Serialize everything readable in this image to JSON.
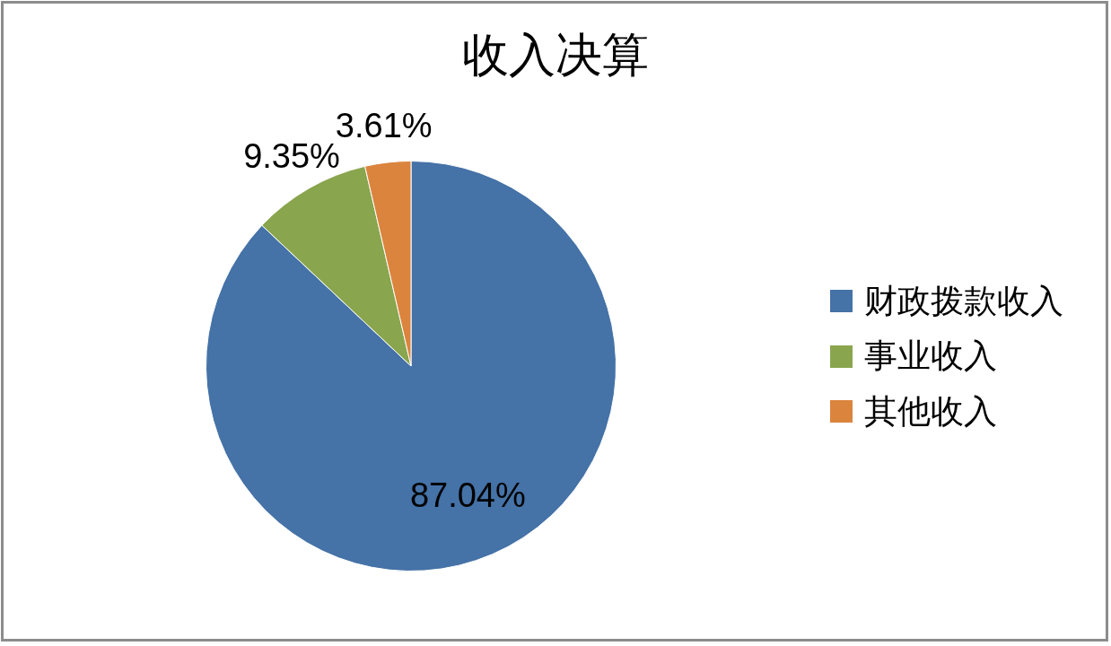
{
  "chart_data": {
    "type": "pie",
    "title": "收入决算",
    "categories": [
      "财政拨款收入",
      "事业收入",
      "其他收入"
    ],
    "values": [
      87.04,
      9.35,
      3.61
    ],
    "colors": [
      "#4572a7",
      "#89a54e",
      "#db843d"
    ],
    "value_labels": [
      "87.04%",
      "9.35%",
      "3.61%"
    ],
    "legend": "right"
  }
}
